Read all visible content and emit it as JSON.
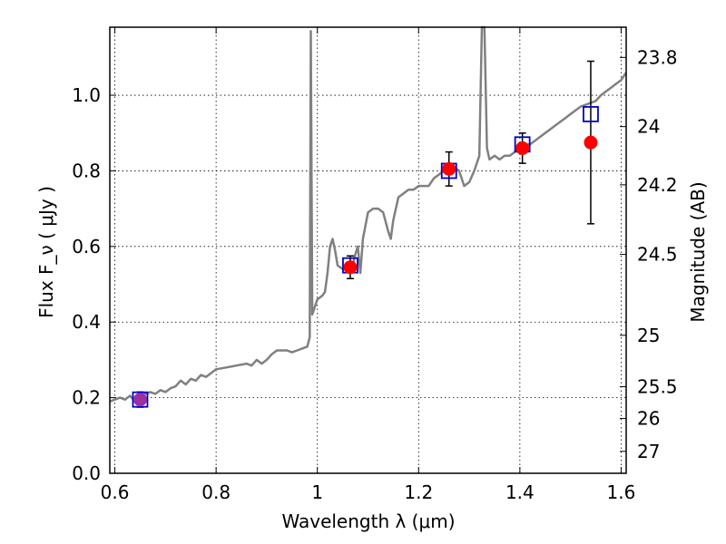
{
  "chart_data": {
    "type": "line",
    "xlabel": "Wavelength  λ (μm)",
    "ylabel_left": "Flux  F_ν  ( μJy )",
    "ylabel_right": "Magnitude (AB)",
    "xlim": [
      0.59,
      1.61
    ],
    "ylim": [
      0.0,
      1.18
    ],
    "grid": true,
    "grid_style": "dotted",
    "x_ticks": [
      0.6,
      0.8,
      1.0,
      1.2,
      1.4,
      1.6
    ],
    "x_tick_labels": [
      "0.6",
      "0.8",
      "1",
      "1.2",
      "1.4",
      "1.6"
    ],
    "y_ticks": [
      0.0,
      0.2,
      0.4,
      0.6,
      0.8,
      1.0
    ],
    "y_tick_labels": [
      "0.0",
      "0.2",
      "0.4",
      "0.6",
      "0.8",
      "1.0"
    ],
    "right_ticks": [
      {
        "label": "23.8",
        "flux": 1.1
      },
      {
        "label": "24",
        "flux": 0.917
      },
      {
        "label": "24.2",
        "flux": 0.763
      },
      {
        "label": "24.5",
        "flux": 0.579
      },
      {
        "label": "25",
        "flux": 0.365
      },
      {
        "label": "25.5",
        "flux": 0.229
      },
      {
        "label": "26",
        "flux": 0.145
      },
      {
        "label": "27",
        "flux": 0.058
      }
    ],
    "model_spectrum": {
      "color": "#808080",
      "points": [
        [
          0.59,
          0.19
        ],
        [
          0.6,
          0.195
        ],
        [
          0.61,
          0.2
        ],
        [
          0.62,
          0.195
        ],
        [
          0.63,
          0.205
        ],
        [
          0.64,
          0.19
        ],
        [
          0.65,
          0.205
        ],
        [
          0.66,
          0.21
        ],
        [
          0.67,
          0.215
        ],
        [
          0.68,
          0.21
        ],
        [
          0.69,
          0.22
        ],
        [
          0.7,
          0.215
        ],
        [
          0.71,
          0.225
        ],
        [
          0.72,
          0.23
        ],
        [
          0.73,
          0.245
        ],
        [
          0.74,
          0.235
        ],
        [
          0.75,
          0.25
        ],
        [
          0.76,
          0.245
        ],
        [
          0.77,
          0.26
        ],
        [
          0.78,
          0.255
        ],
        [
          0.79,
          0.265
        ],
        [
          0.8,
          0.275
        ],
        [
          0.82,
          0.28
        ],
        [
          0.84,
          0.285
        ],
        [
          0.86,
          0.29
        ],
        [
          0.87,
          0.285
        ],
        [
          0.88,
          0.3
        ],
        [
          0.89,
          0.29
        ],
        [
          0.9,
          0.3
        ],
        [
          0.91,
          0.315
        ],
        [
          0.92,
          0.325
        ],
        [
          0.94,
          0.325
        ],
        [
          0.95,
          0.32
        ],
        [
          0.96,
          0.325
        ],
        [
          0.97,
          0.33
        ],
        [
          0.98,
          0.335
        ],
        [
          0.985,
          0.36
        ],
        [
          0.987,
          1.17
        ],
        [
          0.99,
          0.42
        ],
        [
          1.0,
          0.46
        ],
        [
          1.01,
          0.47
        ],
        [
          1.015,
          0.48
        ],
        [
          1.02,
          0.53
        ],
        [
          1.025,
          0.6
        ],
        [
          1.03,
          0.62
        ],
        [
          1.035,
          0.59
        ],
        [
          1.04,
          0.55
        ],
        [
          1.05,
          0.54
        ],
        [
          1.06,
          0.55
        ],
        [
          1.065,
          0.56
        ],
        [
          1.07,
          0.55
        ],
        [
          1.075,
          0.58
        ],
        [
          1.08,
          0.6
        ],
        [
          1.085,
          0.53
        ],
        [
          1.09,
          0.62
        ],
        [
          1.1,
          0.69
        ],
        [
          1.11,
          0.7
        ],
        [
          1.12,
          0.7
        ],
        [
          1.13,
          0.69
        ],
        [
          1.14,
          0.64
        ],
        [
          1.145,
          0.62
        ],
        [
          1.15,
          0.67
        ],
        [
          1.16,
          0.73
        ],
        [
          1.17,
          0.74
        ],
        [
          1.18,
          0.75
        ],
        [
          1.19,
          0.75
        ],
        [
          1.2,
          0.76
        ],
        [
          1.22,
          0.76
        ],
        [
          1.23,
          0.78
        ],
        [
          1.24,
          0.79
        ],
        [
          1.25,
          0.8
        ],
        [
          1.26,
          0.8
        ],
        [
          1.27,
          0.81
        ],
        [
          1.28,
          0.8
        ],
        [
          1.29,
          0.76
        ],
        [
          1.3,
          0.77
        ],
        [
          1.31,
          0.8
        ],
        [
          1.315,
          0.82
        ],
        [
          1.32,
          0.84
        ],
        [
          1.325,
          1.18
        ],
        [
          1.33,
          1.18
        ],
        [
          1.335,
          0.86
        ],
        [
          1.34,
          0.83
        ],
        [
          1.35,
          0.84
        ],
        [
          1.36,
          0.83
        ],
        [
          1.37,
          0.84
        ],
        [
          1.38,
          0.84
        ],
        [
          1.39,
          0.85
        ],
        [
          1.4,
          0.86
        ],
        [
          1.41,
          0.87
        ],
        [
          1.42,
          0.87
        ],
        [
          1.43,
          0.88
        ],
        [
          1.44,
          0.89
        ],
        [
          1.45,
          0.9
        ],
        [
          1.46,
          0.91
        ],
        [
          1.47,
          0.92
        ],
        [
          1.48,
          0.93
        ],
        [
          1.49,
          0.94
        ],
        [
          1.5,
          0.95
        ],
        [
          1.51,
          0.96
        ],
        [
          1.52,
          0.97
        ],
        [
          1.53,
          0.975
        ],
        [
          1.54,
          0.98
        ],
        [
          1.55,
          0.985
        ],
        [
          1.56,
          1.0
        ],
        [
          1.57,
          1.01
        ],
        [
          1.58,
          1.02
        ],
        [
          1.59,
          1.03
        ],
        [
          1.6,
          1.04
        ],
        [
          1.61,
          1.06
        ]
      ]
    },
    "model_photometry": {
      "marker": "open-square",
      "color": "#0000cc",
      "points": [
        [
          0.65,
          0.195
        ],
        [
          1.065,
          0.55
        ],
        [
          1.26,
          0.8
        ],
        [
          1.405,
          0.87
        ],
        [
          1.54,
          0.95
        ]
      ]
    },
    "observed": {
      "marker": "filled-circle",
      "color": "#ff0000",
      "points": [
        {
          "x": 0.65,
          "y": 0.195,
          "yerr": 0.02,
          "color": "#9b30a0"
        },
        {
          "x": 1.065,
          "y": 0.545,
          "yerr": 0.03
        },
        {
          "x": 1.26,
          "y": 0.805,
          "yerr": 0.045
        },
        {
          "x": 1.405,
          "y": 0.86,
          "yerr": 0.04
        },
        {
          "x": 1.54,
          "y": 0.875,
          "yerr": 0.215
        }
      ]
    }
  }
}
